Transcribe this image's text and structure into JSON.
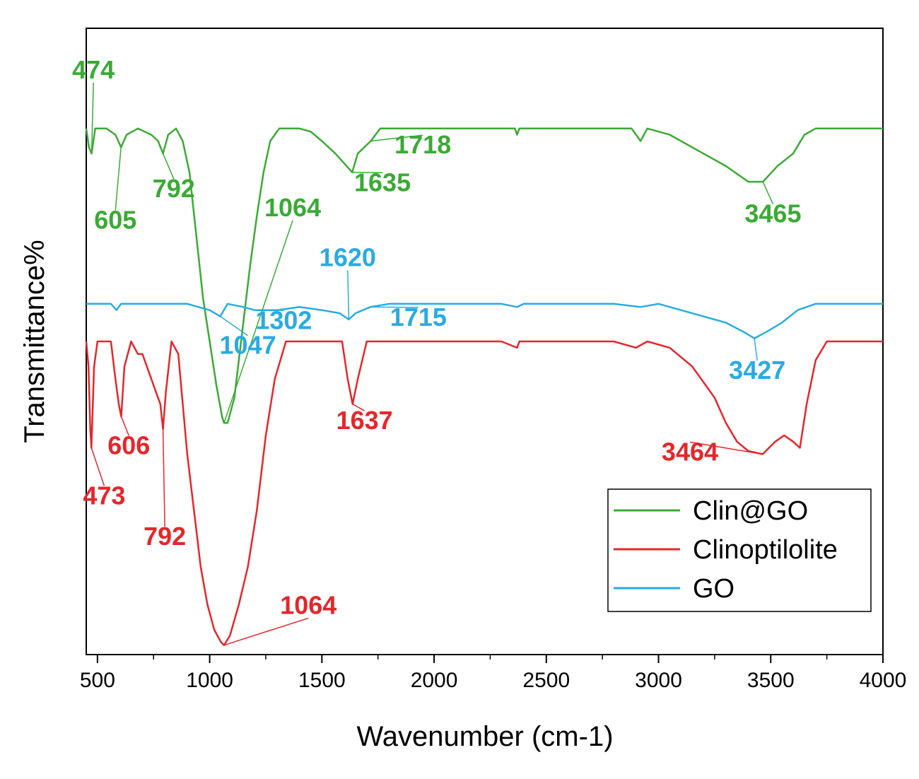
{
  "chart_data": {
    "type": "line",
    "title": "",
    "xlabel": "Wavenumber (cm-1)",
    "ylabel": "Transmittance%",
    "xlim": [
      450,
      4000
    ],
    "x_ticks": [
      500,
      1000,
      1500,
      2000,
      2500,
      3000,
      3500,
      4000
    ],
    "x_tick_labels": [
      "500",
      "1000",
      "1500",
      "2000",
      "2500",
      "3000",
      "3500",
      "4000"
    ],
    "y_ticks_shown": false,
    "grid": false,
    "legend_position": "bottom-right",
    "y_units_note": "relative transmittance, arbitrary units (0 = bottom of axes, 100 = top)",
    "series": [
      {
        "name": "Clin@GO",
        "color": "#3aaa35",
        "points": [
          [
            450,
            84
          ],
          [
            462,
            81
          ],
          [
            474,
            80
          ],
          [
            490,
            84
          ],
          [
            540,
            84
          ],
          [
            580,
            83
          ],
          [
            605,
            81
          ],
          [
            630,
            83
          ],
          [
            680,
            84
          ],
          [
            740,
            83
          ],
          [
            770,
            82
          ],
          [
            792,
            80
          ],
          [
            815,
            83
          ],
          [
            850,
            84
          ],
          [
            880,
            82
          ],
          [
            910,
            77
          ],
          [
            940,
            67
          ],
          [
            970,
            57
          ],
          [
            1000,
            50
          ],
          [
            1030,
            43
          ],
          [
            1055,
            38
          ],
          [
            1064,
            37
          ],
          [
            1080,
            37
          ],
          [
            1110,
            41
          ],
          [
            1150,
            53
          ],
          [
            1180,
            62
          ],
          [
            1210,
            70
          ],
          [
            1240,
            77
          ],
          [
            1270,
            82
          ],
          [
            1310,
            84
          ],
          [
            1400,
            84
          ],
          [
            1450,
            83.5
          ],
          [
            1500,
            82
          ],
          [
            1560,
            80
          ],
          [
            1610,
            78
          ],
          [
            1635,
            77
          ],
          [
            1660,
            80
          ],
          [
            1718,
            82
          ],
          [
            1760,
            84
          ],
          [
            1900,
            84
          ],
          [
            2200,
            84
          ],
          [
            2360,
            84
          ],
          [
            2370,
            83
          ],
          [
            2380,
            84
          ],
          [
            2700,
            84
          ],
          [
            2880,
            84
          ],
          [
            2900,
            83
          ],
          [
            2920,
            82
          ],
          [
            2950,
            84
          ],
          [
            3050,
            83
          ],
          [
            3200,
            80
          ],
          [
            3300,
            78
          ],
          [
            3400,
            75.5
          ],
          [
            3465,
            75.5
          ],
          [
            3530,
            78
          ],
          [
            3600,
            80
          ],
          [
            3650,
            83
          ],
          [
            3700,
            84
          ],
          [
            4000,
            84
          ]
        ]
      },
      {
        "name": "Clinoptilolite",
        "color": "#e5262b",
        "points": [
          [
            450,
            50
          ],
          [
            460,
            46
          ],
          [
            468,
            36
          ],
          [
            473,
            33
          ],
          [
            485,
            46
          ],
          [
            500,
            50
          ],
          [
            560,
            50
          ],
          [
            580,
            44
          ],
          [
            595,
            40
          ],
          [
            606,
            38
          ],
          [
            620,
            46
          ],
          [
            650,
            50
          ],
          [
            680,
            48
          ],
          [
            700,
            48
          ],
          [
            740,
            44
          ],
          [
            760,
            42
          ],
          [
            780,
            40
          ],
          [
            792,
            36
          ],
          [
            805,
            42
          ],
          [
            830,
            50
          ],
          [
            860,
            48
          ],
          [
            880,
            40
          ],
          [
            900,
            32
          ],
          [
            930,
            23
          ],
          [
            960,
            14
          ],
          [
            990,
            8
          ],
          [
            1020,
            4
          ],
          [
            1050,
            2
          ],
          [
            1064,
            1.5
          ],
          [
            1090,
            3
          ],
          [
            1130,
            8
          ],
          [
            1170,
            14
          ],
          [
            1210,
            23
          ],
          [
            1250,
            35
          ],
          [
            1290,
            44
          ],
          [
            1340,
            50
          ],
          [
            1400,
            50
          ],
          [
            1590,
            50
          ],
          [
            1615,
            44
          ],
          [
            1637,
            40
          ],
          [
            1660,
            44
          ],
          [
            1700,
            50
          ],
          [
            1900,
            50
          ],
          [
            2300,
            50
          ],
          [
            2370,
            49
          ],
          [
            2380,
            50
          ],
          [
            2800,
            50
          ],
          [
            2900,
            49
          ],
          [
            2950,
            50
          ],
          [
            3050,
            49
          ],
          [
            3150,
            46
          ],
          [
            3250,
            41
          ],
          [
            3300,
            37
          ],
          [
            3350,
            34
          ],
          [
            3400,
            32.5
          ],
          [
            3464,
            32
          ],
          [
            3520,
            34
          ],
          [
            3560,
            35
          ],
          [
            3600,
            34
          ],
          [
            3630,
            33
          ],
          [
            3660,
            40
          ],
          [
            3700,
            47
          ],
          [
            3750,
            50
          ],
          [
            4000,
            50
          ]
        ]
      },
      {
        "name": "GO",
        "color": "#29abe2",
        "points": [
          [
            450,
            56
          ],
          [
            560,
            56
          ],
          [
            585,
            55
          ],
          [
            605,
            56
          ],
          [
            700,
            56
          ],
          [
            900,
            56
          ],
          [
            950,
            55.5
          ],
          [
            1000,
            55
          ],
          [
            1047,
            54
          ],
          [
            1080,
            56
          ],
          [
            1150,
            55.5
          ],
          [
            1200,
            55
          ],
          [
            1302,
            55
          ],
          [
            1400,
            55.5
          ],
          [
            1500,
            55
          ],
          [
            1580,
            54.5
          ],
          [
            1620,
            53.5
          ],
          [
            1650,
            54.5
          ],
          [
            1715,
            55.5
          ],
          [
            1800,
            56
          ],
          [
            2300,
            56
          ],
          [
            2370,
            55.5
          ],
          [
            2400,
            56
          ],
          [
            2800,
            56
          ],
          [
            2920,
            55.5
          ],
          [
            3000,
            56
          ],
          [
            3100,
            55
          ],
          [
            3200,
            54
          ],
          [
            3300,
            53
          ],
          [
            3380,
            51.5
          ],
          [
            3427,
            50.5
          ],
          [
            3480,
            51.5
          ],
          [
            3550,
            53
          ],
          [
            3620,
            55
          ],
          [
            3700,
            56
          ],
          [
            4000,
            56
          ]
        ]
      }
    ],
    "annotations": [
      {
        "series": "Clin@GO",
        "text": "474",
        "peak_x": 474,
        "label_x": 482,
        "label_y": 92,
        "color": "#3aaa35"
      },
      {
        "series": "Clin@GO",
        "text": "605",
        "peak_x": 605,
        "label_x": 580,
        "label_y": 68,
        "color": "#3aaa35"
      },
      {
        "series": "Clin@GO",
        "text": "792",
        "peak_x": 792,
        "label_x": 840,
        "label_y": 73,
        "color": "#3aaa35"
      },
      {
        "series": "Clin@GO",
        "text": "1064",
        "peak_x": 1064,
        "label_x": 1370,
        "label_y": 70,
        "color": "#3aaa35"
      },
      {
        "series": "Clin@GO",
        "text": "1635",
        "peak_x": 1635,
        "label_x": 1770,
        "label_y": 74,
        "color": "#3aaa35"
      },
      {
        "series": "Clin@GO",
        "text": "1718",
        "peak_x": 1718,
        "label_x": 1950,
        "label_y": 80,
        "color": "#3aaa35"
      },
      {
        "series": "Clin@GO",
        "text": "3465",
        "peak_x": 3465,
        "label_x": 3510,
        "label_y": 69,
        "color": "#3aaa35"
      },
      {
        "series": "GO",
        "text": "1620",
        "peak_x": 1620,
        "label_x": 1615,
        "label_y": 62,
        "color": "#29abe2"
      },
      {
        "series": "GO",
        "text": "1047",
        "peak_x": 1047,
        "label_x": 1170,
        "label_y": 48,
        "color": "#29abe2"
      },
      {
        "series": "GO",
        "text": "1302",
        "peak_x": 1302,
        "label_x": 1330,
        "label_y": 52,
        "color": "#29abe2"
      },
      {
        "series": "GO",
        "text": "1715",
        "peak_x": 1715,
        "label_x": 1930,
        "label_y": 52.5,
        "color": "#29abe2"
      },
      {
        "series": "GO",
        "text": "3427",
        "peak_x": 3427,
        "label_x": 3440,
        "label_y": 44,
        "color": "#29abe2"
      },
      {
        "series": "Clinoptilolite",
        "text": "606",
        "peak_x": 606,
        "label_x": 640,
        "label_y": 32,
        "color": "#e5262b"
      },
      {
        "series": "Clinoptilolite",
        "text": "473",
        "peak_x": 473,
        "label_x": 530,
        "label_y": 24,
        "color": "#e5262b"
      },
      {
        "series": "Clinoptilolite",
        "text": "792",
        "peak_x": 792,
        "label_x": 800,
        "label_y": 17.5,
        "color": "#e5262b"
      },
      {
        "series": "Clinoptilolite",
        "text": "1064",
        "peak_x": 1064,
        "label_x": 1440,
        "label_y": 6.5,
        "color": "#e5262b"
      },
      {
        "series": "Clinoptilolite",
        "text": "1637",
        "peak_x": 1637,
        "label_x": 1690,
        "label_y": 36,
        "color": "#e5262b"
      },
      {
        "series": "Clinoptilolite",
        "text": "3464",
        "peak_x": 3464,
        "label_x": 3140,
        "label_y": 31,
        "color": "#e5262b"
      }
    ],
    "legend": [
      {
        "label": "Clin@GO",
        "color": "#3aaa35"
      },
      {
        "label": "Clinoptilolite",
        "color": "#e5262b"
      },
      {
        "label": "GO",
        "color": "#29abe2"
      }
    ]
  }
}
